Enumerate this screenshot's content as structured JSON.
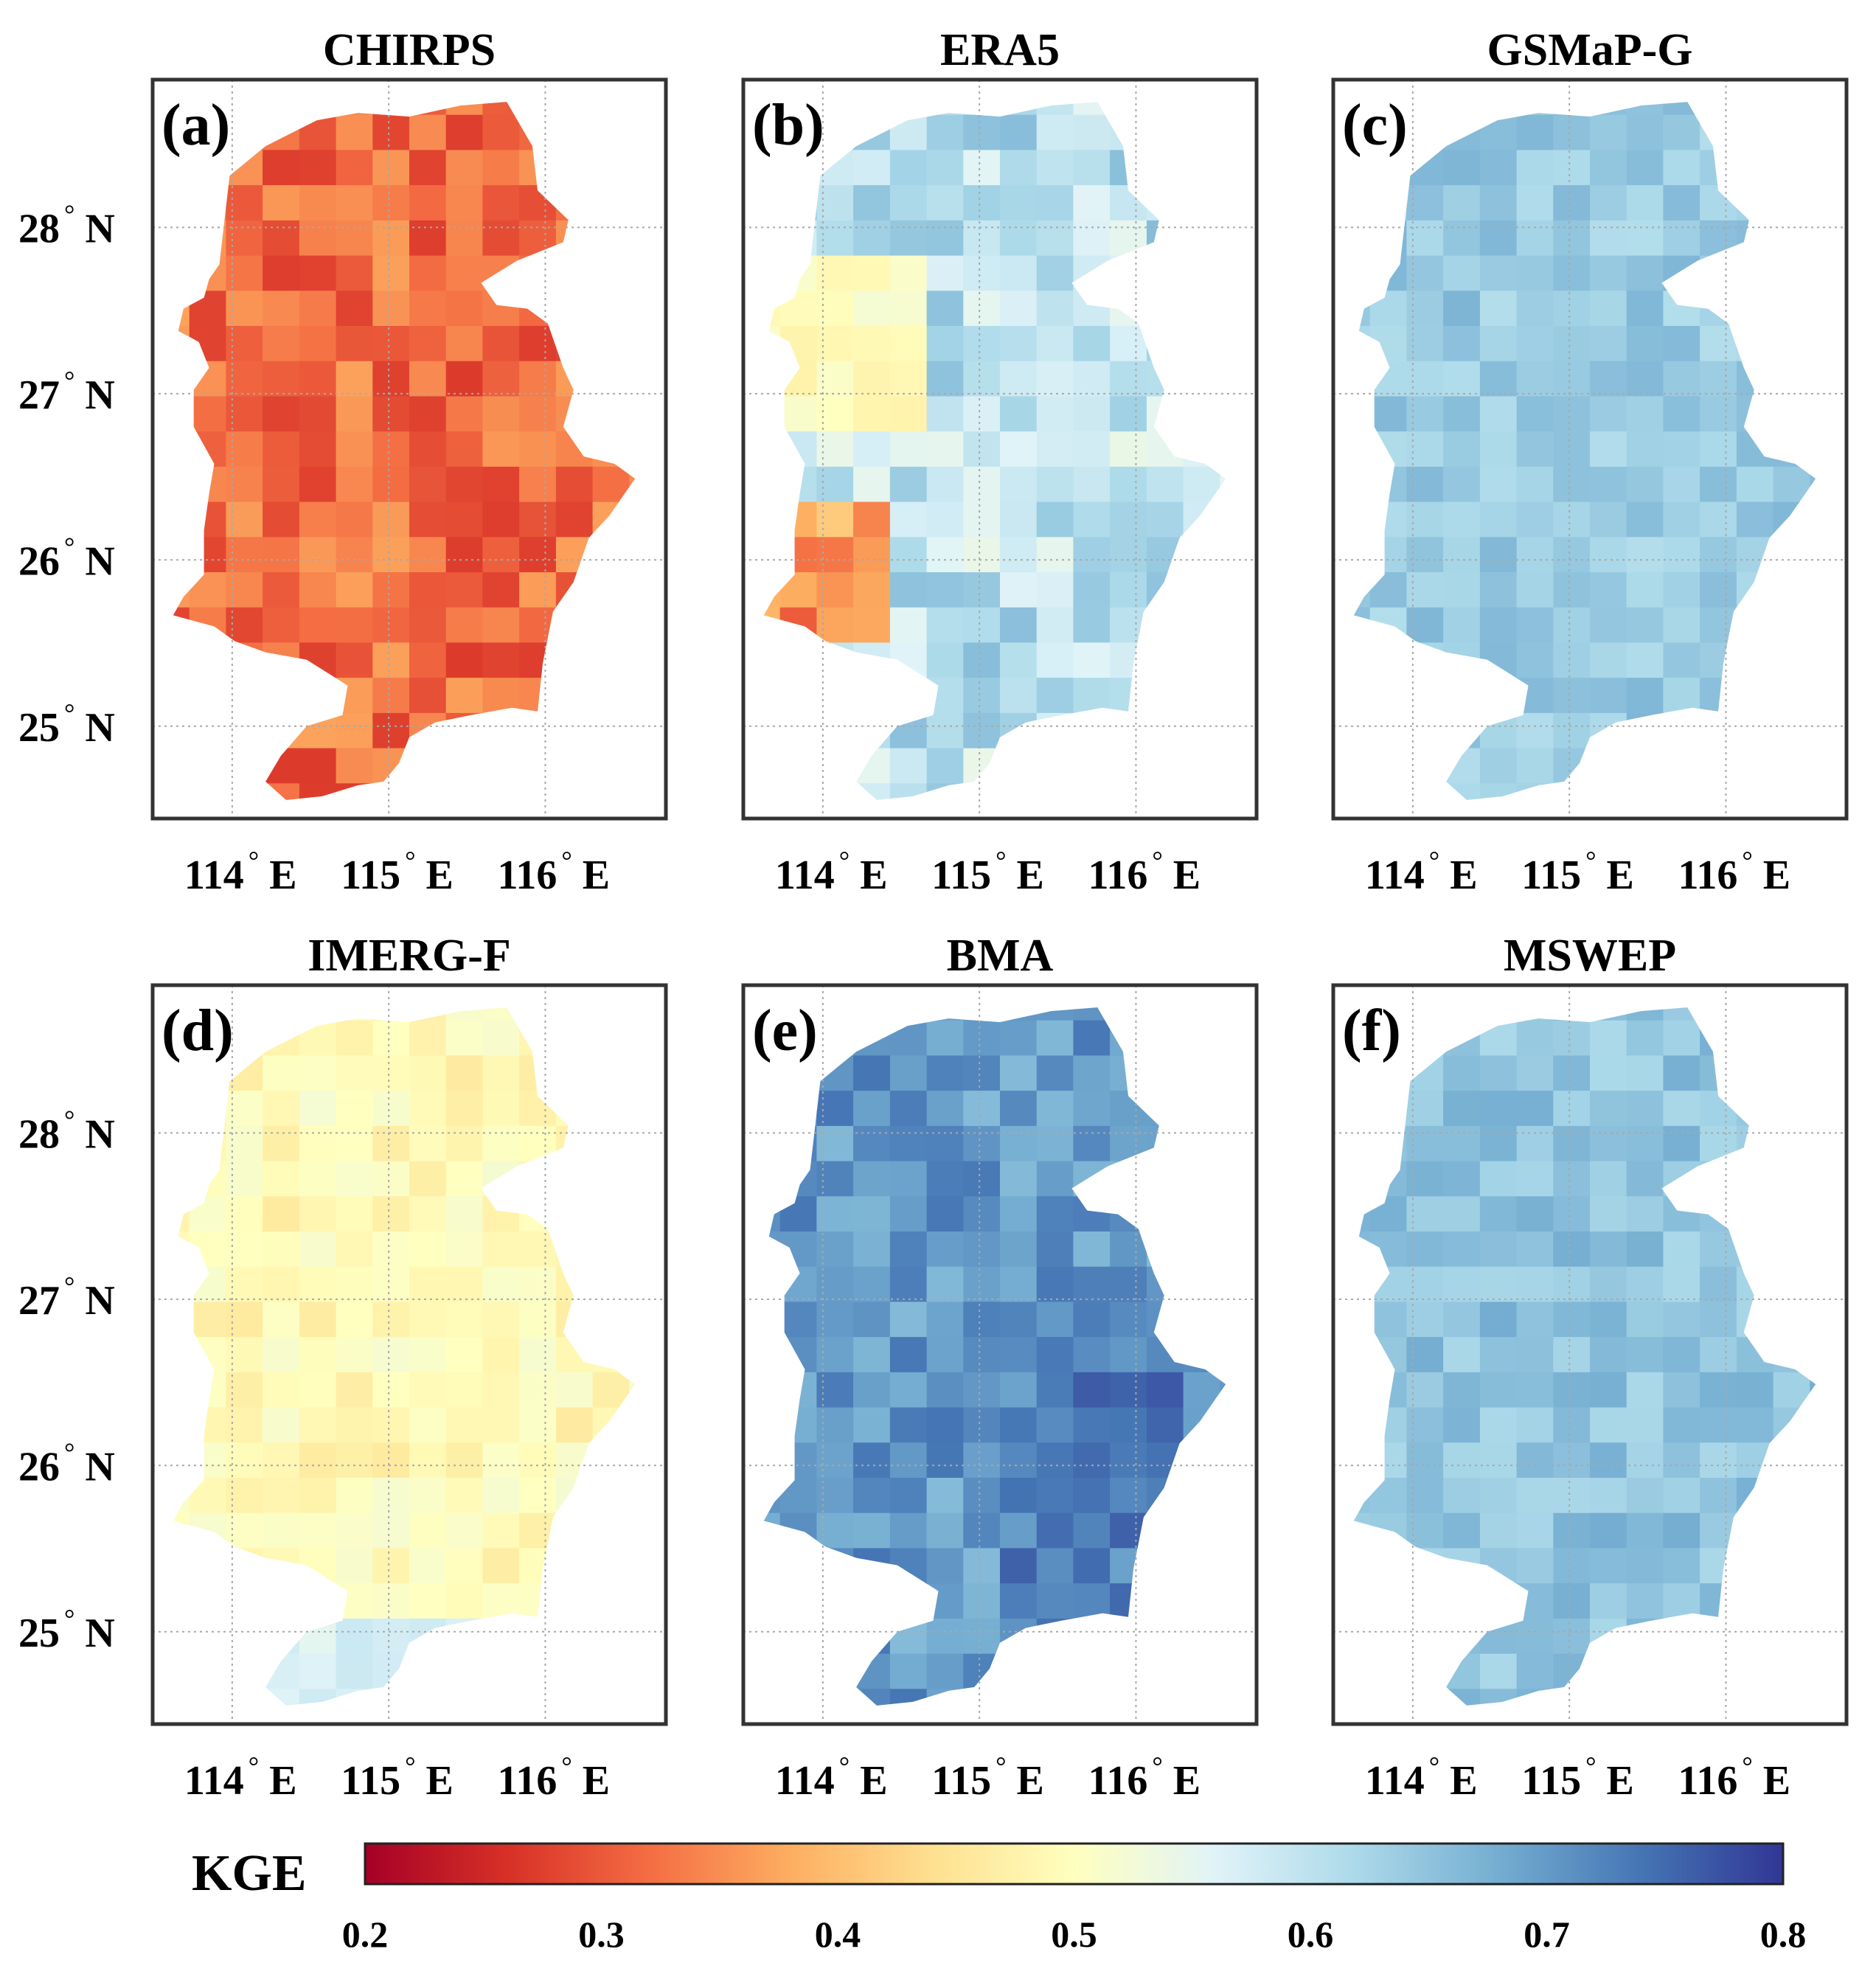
{
  "figure": {
    "panels": [
      {
        "id": "a",
        "title": "CHIRPS",
        "label": "(a)",
        "base": 0.32,
        "spread": 0.05,
        "seed": 11,
        "cmapColor": "red"
      },
      {
        "id": "b",
        "title": "ERA5",
        "label": "(b)",
        "base": 0.6,
        "spread": 0.06,
        "seed": 23,
        "cmapColor": "light-blue-mixed"
      },
      {
        "id": "c",
        "title": "GSMaP-G",
        "label": "(c)",
        "base": 0.64,
        "spread": 0.03,
        "seed": 37,
        "cmapColor": "blue"
      },
      {
        "id": "d",
        "title": "IMERG-F",
        "label": "(d)",
        "base": 0.49,
        "spread": 0.03,
        "seed": 41,
        "cmapColor": "yellow"
      },
      {
        "id": "e",
        "title": "BMA",
        "label": "(e)",
        "base": 0.7,
        "spread": 0.04,
        "seed": 53,
        "cmapColor": "dark-blue"
      },
      {
        "id": "f",
        "title": "MSWEP",
        "label": "(f)",
        "base": 0.65,
        "spread": 0.03,
        "seed": 67,
        "cmapColor": "blue"
      }
    ],
    "lat_ticks": [
      {
        "deg": "28",
        "hemi": "N"
      },
      {
        "deg": "27",
        "hemi": "N"
      },
      {
        "deg": "26",
        "hemi": "N"
      },
      {
        "deg": "25",
        "hemi": "N"
      }
    ],
    "lon_ticks": [
      {
        "deg": "114",
        "hemi": "E"
      },
      {
        "deg": "115",
        "hemi": "E"
      },
      {
        "deg": "116",
        "hemi": "E"
      }
    ],
    "degree_symbol": "°",
    "colorbar": {
      "title": "KGE",
      "min": 0.2,
      "max": 0.8,
      "ticks": [
        "0.2",
        "0.3",
        "0.4",
        "0.5",
        "0.6",
        "0.7",
        "0.8"
      ],
      "colormap": "RdYlBu",
      "colors": [
        "#a50026",
        "#d73027",
        "#f46d43",
        "#fdae61",
        "#fee090",
        "#ffffbf",
        "#e0f3f8",
        "#abd9e9",
        "#74add1",
        "#4575b4",
        "#313695"
      ]
    }
  },
  "chart_data": {
    "type": "heatmap",
    "description_source": "six gridded maps of KGE over a river basin",
    "panels": [
      "CHIRPS",
      "ERA5",
      "GSMaP-G",
      "IMERG-F",
      "BMA",
      "MSWEP"
    ],
    "approx_typical_kge": {
      "CHIRPS": 0.32,
      "ERA5": 0.6,
      "GSMaP-G": 0.64,
      "IMERG-F": 0.49,
      "BMA": 0.7,
      "MSWEP": 0.65
    },
    "lat_range": [
      24.5,
      28.9
    ],
    "lon_range": [
      113.5,
      116.8
    ],
    "colorbar_range": [
      0.2,
      0.8
    ]
  }
}
